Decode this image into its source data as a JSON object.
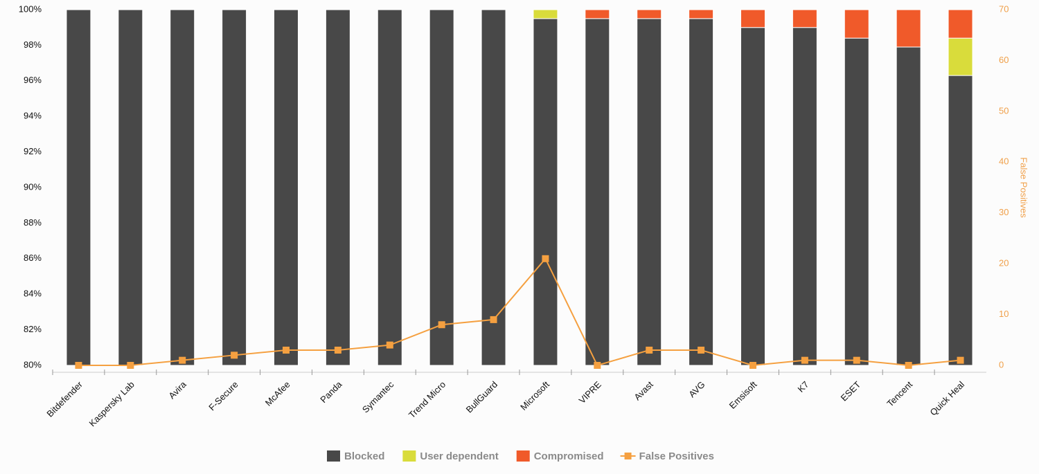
{
  "chart_data": {
    "type": "bar",
    "stacked": true,
    "categories": [
      "Bitdefender",
      "Kaspersky Lab",
      "Avira",
      "F-Secure",
      "McAfee",
      "Panda",
      "Symantec",
      "Trend Micro",
      "BullGuard",
      "Microsoft",
      "VIPRE",
      "Avast",
      "AVG",
      "Emsisoft",
      "K7",
      "ESET",
      "Tencent",
      "Quick Heal"
    ],
    "series": [
      {
        "name": "Blocked",
        "color": "#484848",
        "values": [
          100,
          100,
          100,
          100,
          100,
          100,
          100,
          100,
          100,
          99.5,
          99.5,
          99.5,
          99.5,
          99.0,
          99.0,
          98.4,
          97.9,
          96.3
        ]
      },
      {
        "name": "User dependent",
        "color": "#d9dc3b",
        "values": [
          0,
          0,
          0,
          0,
          0,
          0,
          0,
          0,
          0,
          0.5,
          0,
          0,
          0,
          0,
          0,
          0,
          0,
          2.1
        ]
      },
      {
        "name": "Compromised",
        "color": "#f05a2a",
        "values": [
          0,
          0,
          0,
          0,
          0,
          0,
          0,
          0,
          0,
          0,
          0.5,
          0.5,
          0.5,
          1.0,
          1.0,
          1.6,
          2.1,
          1.6
        ]
      },
      {
        "name": "False Positives",
        "color": "#f5a040",
        "type": "line",
        "axis": "y2",
        "values": [
          0,
          0,
          1,
          2,
          3,
          3,
          4,
          8,
          9,
          21,
          0,
          3,
          3,
          0,
          1,
          1,
          0,
          1
        ]
      }
    ],
    "ylim": [
      80,
      100
    ],
    "yticks": [
      {
        "value": 80,
        "label": "80%"
      },
      {
        "value": 82,
        "label": "82%"
      },
      {
        "value": 84,
        "label": "84%"
      },
      {
        "value": 86,
        "label": "86%"
      },
      {
        "value": 88,
        "label": "88%"
      },
      {
        "value": 90,
        "label": "90%"
      },
      {
        "value": 92,
        "label": "92%"
      },
      {
        "value": 94,
        "label": "94%"
      },
      {
        "value": 96,
        "label": "96%"
      },
      {
        "value": 98,
        "label": "98%"
      },
      {
        "value": 100,
        "label": "100%"
      }
    ],
    "y2label": "False Positives",
    "y2lim": [
      0,
      70
    ],
    "y2ticks": [
      0,
      10,
      20,
      30,
      40,
      50,
      60,
      70
    ],
    "legend": "bottom"
  }
}
